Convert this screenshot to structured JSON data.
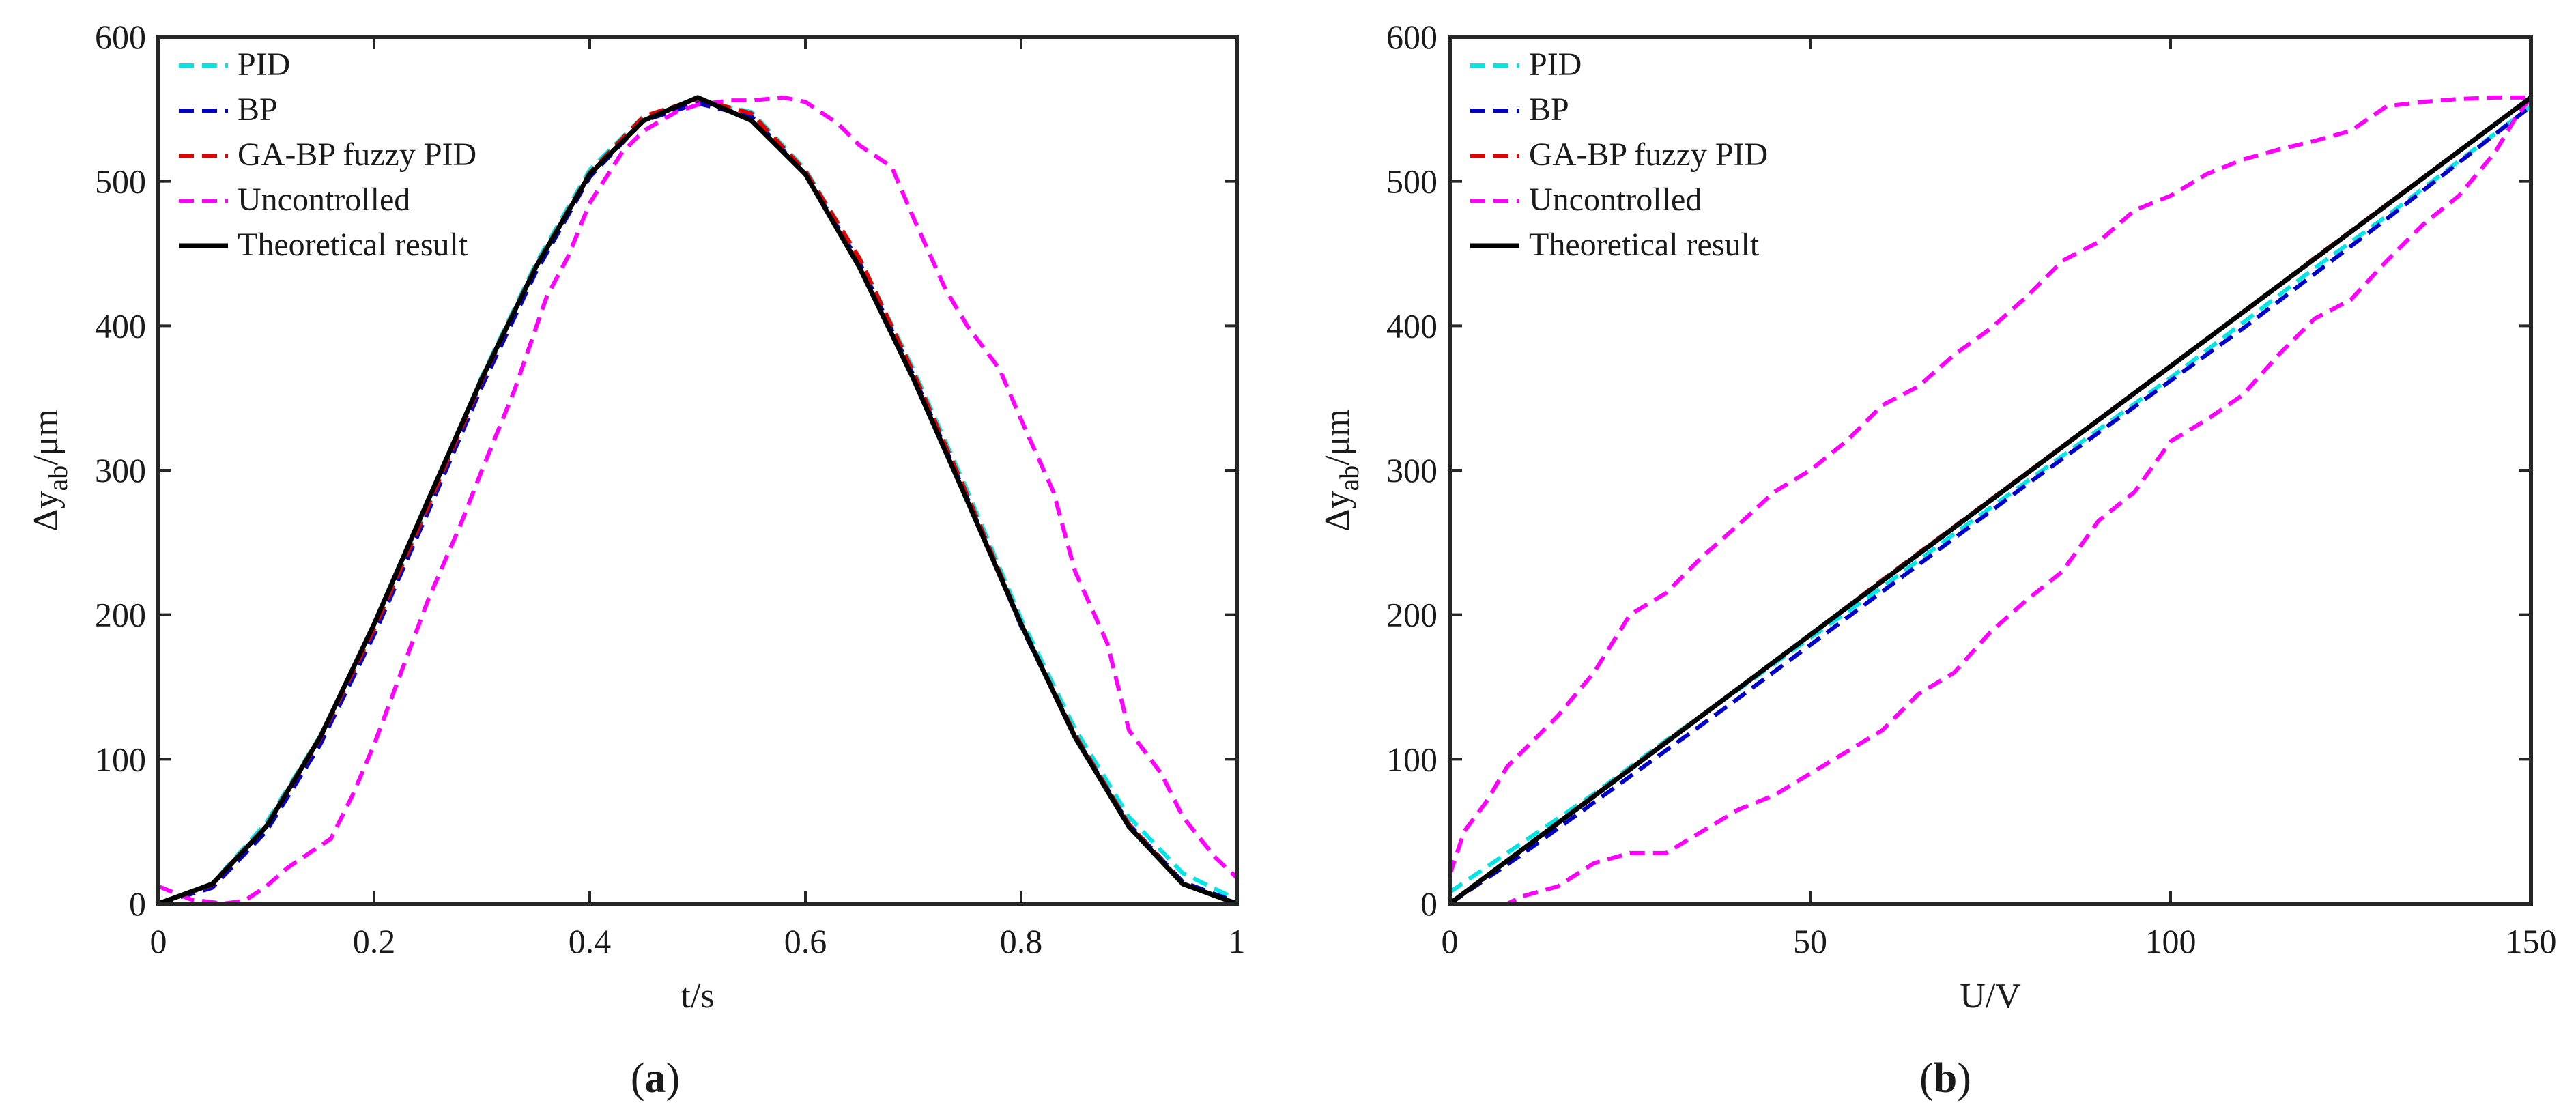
{
  "figure_caption": {
    "panels": [
      "a",
      "b"
    ]
  },
  "colors": {
    "PID": "#00e5e5",
    "BP": "#0000cc",
    "GA": "#e60000",
    "Uncontrolled": "#ff00ff",
    "Theoretical": "#000000"
  },
  "chart_data": [
    {
      "id": "a",
      "type": "line",
      "caption_label": "a",
      "xlabel": "t/s",
      "ylabel_main": "Δy",
      "ylabel_sub": "ab",
      "ylabel_unit": "/μm",
      "xlim": [
        0,
        1
      ],
      "ylim": [
        0,
        600
      ],
      "xticks": [
        0,
        0.2,
        0.4,
        0.6,
        0.8,
        1
      ],
      "xtick_labels": [
        "0",
        "0.2",
        "0.4",
        "0.6",
        "0.8",
        "1"
      ],
      "yticks": [
        0,
        100,
        200,
        300,
        400,
        500,
        600
      ],
      "ytick_labels": [
        "0",
        "100",
        "200",
        "300",
        "400",
        "500",
        "600"
      ],
      "legend_position": "top-left",
      "legend": [
        "PID",
        "BP",
        "GA-BP fuzzy PID",
        "Uncontrolled",
        "Theoretical result"
      ],
      "series": [
        {
          "name": "PID",
          "style": "dashed",
          "x": [
            0,
            0.05,
            0.1,
            0.15,
            0.2,
            0.25,
            0.3,
            0.35,
            0.4,
            0.45,
            0.5,
            0.55,
            0.6,
            0.65,
            0.7,
            0.75,
            0.8,
            0.85,
            0.9,
            0.95,
            1.0
          ],
          "y": [
            0,
            14,
            56,
            116,
            192,
            276,
            365,
            443,
            508,
            545,
            556,
            548,
            508,
            447,
            370,
            286,
            197,
            121,
            60,
            21,
            3
          ]
        },
        {
          "name": "BP",
          "style": "dashed",
          "x": [
            0,
            0.05,
            0.1,
            0.15,
            0.2,
            0.25,
            0.3,
            0.35,
            0.4,
            0.45,
            0.5,
            0.55,
            0.6,
            0.65,
            0.7,
            0.75,
            0.8,
            0.85,
            0.9,
            0.95,
            1.0
          ],
          "y": [
            0,
            11,
            50,
            110,
            186,
            271,
            358,
            437,
            503,
            542,
            554,
            545,
            505,
            444,
            366,
            281,
            192,
            116,
            55,
            15,
            1
          ]
        },
        {
          "name": "GA-BP fuzzy PID",
          "style": "dashed",
          "x": [
            0,
            0.05,
            0.1,
            0.15,
            0.2,
            0.25,
            0.3,
            0.35,
            0.4,
            0.45,
            0.5,
            0.55,
            0.6,
            0.65,
            0.7,
            0.75,
            0.8,
            0.85,
            0.9,
            0.95,
            1.0
          ],
          "y": [
            0,
            13,
            53,
            114,
            190,
            275,
            362,
            441,
            506,
            545,
            557,
            547,
            507,
            447,
            368,
            283,
            194,
            117,
            55,
            14,
            0
          ]
        },
        {
          "name": "Uncontrolled",
          "style": "dashed",
          "x": [
            0,
            0.03,
            0.06,
            0.08,
            0.1,
            0.12,
            0.14,
            0.16,
            0.18,
            0.2,
            0.22,
            0.25,
            0.28,
            0.3,
            0.33,
            0.36,
            0.38,
            0.4,
            0.43,
            0.45,
            0.48,
            0.5,
            0.53,
            0.55,
            0.58,
            0.6,
            0.63,
            0.65,
            0.68,
            0.7,
            0.73,
            0.75,
            0.78,
            0.8,
            0.83,
            0.85,
            0.88,
            0.9,
            0.93,
            0.95,
            0.98,
            1.0
          ],
          "y": [
            12,
            3,
            0,
            2,
            12,
            25,
            35,
            45,
            75,
            110,
            150,
            210,
            262,
            300,
            355,
            420,
            448,
            485,
            520,
            535,
            548,
            553,
            556,
            556,
            558,
            555,
            540,
            525,
            510,
            475,
            425,
            400,
            370,
            335,
            285,
            230,
            180,
            120,
            90,
            60,
            32,
            18
          ]
        },
        {
          "name": "Theoretical result",
          "style": "solid",
          "x": [
            0,
            0.05,
            0.1,
            0.15,
            0.2,
            0.25,
            0.3,
            0.35,
            0.4,
            0.45,
            0.5,
            0.55,
            0.6,
            0.65,
            0.7,
            0.75,
            0.8,
            0.85,
            0.9,
            0.95,
            1.0
          ],
          "y": [
            0,
            13.6,
            53.3,
            115.2,
            193.4,
            279.0,
            363.5,
            440.6,
            504.9,
            542.1,
            558.0,
            542.1,
            504.9,
            440.6,
            363.5,
            279.0,
            193.4,
            115.2,
            53.3,
            13.6,
            0
          ]
        }
      ]
    },
    {
      "id": "b",
      "type": "line",
      "caption_label": "b",
      "xlabel": "U/V",
      "ylabel_main": "Δy",
      "ylabel_sub": "ab",
      "ylabel_unit": "/μm",
      "xlim": [
        0,
        150
      ],
      "ylim": [
        0,
        600
      ],
      "xticks": [
        0,
        50,
        100,
        150
      ],
      "xtick_labels": [
        "0",
        "50",
        "100",
        "150"
      ],
      "yticks": [
        0,
        100,
        200,
        300,
        400,
        500,
        600
      ],
      "ytick_labels": [
        "0",
        "100",
        "200",
        "300",
        "400",
        "500",
        "600"
      ],
      "legend_position": "top-left",
      "legend": [
        "PID",
        "BP",
        "GA-BP fuzzy PID",
        "Uncontrolled",
        "Theoretical result"
      ],
      "series": [
        {
          "name": "PID",
          "style": "dashed",
          "x": [
            0,
            10,
            20,
            30,
            40,
            50,
            60,
            70,
            80,
            90,
            100,
            110,
            120,
            130,
            140,
            150
          ],
          "y": [
            8,
            42,
            76,
            113,
            148,
            184,
            219,
            256,
            292,
            328,
            364,
            402,
            440,
            476,
            514,
            552
          ]
        },
        {
          "name": "BP",
          "style": "dashed",
          "x": [
            0,
            10,
            20,
            30,
            40,
            50,
            60,
            70,
            80,
            90,
            100,
            110,
            120,
            130,
            140,
            150
          ],
          "y": [
            0,
            34,
            70,
            106,
            142,
            179,
            216,
            253,
            290,
            326,
            362,
            398,
            436,
            474,
            513,
            552
          ]
        },
        {
          "name": "GA-BP fuzzy PID",
          "style": "dashed",
          "x": [
            0,
            10,
            20,
            30,
            40,
            50,
            60,
            70,
            80,
            90,
            100,
            110,
            120,
            130,
            140,
            150
          ],
          "y": [
            0,
            37,
            74,
            112,
            149,
            186,
            224,
            261,
            298,
            335,
            372,
            409,
            447,
            484,
            521,
            558
          ]
        },
        {
          "name": "Uncontrolled",
          "style": "dashed",
          "x": [
            0,
            2,
            5,
            8,
            10,
            15,
            20,
            25,
            30,
            35,
            40,
            45,
            50,
            55,
            60,
            65,
            70,
            75,
            80,
            85,
            90,
            95,
            100,
            105,
            110,
            115,
            120,
            125,
            130,
            135,
            140,
            145,
            150,
            148,
            145,
            140,
            135,
            130,
            125,
            120,
            115,
            110,
            105,
            100,
            95,
            90,
            85,
            80,
            75,
            70,
            65,
            60,
            55,
            50,
            45,
            40,
            35,
            30,
            25,
            20,
            15,
            10,
            8,
            5,
            2,
            0
          ],
          "y": [
            20,
            50,
            70,
            95,
            105,
            130,
            160,
            200,
            215,
            240,
            262,
            285,
            300,
            320,
            345,
            358,
            380,
            398,
            420,
            445,
            458,
            480,
            490,
            505,
            515,
            522,
            528,
            535,
            552,
            555,
            557,
            558,
            558,
            545,
            520,
            490,
            470,
            445,
            418,
            405,
            380,
            352,
            335,
            320,
            285,
            265,
            230,
            210,
            188,
            160,
            145,
            120,
            105,
            90,
            75,
            65,
            50,
            35,
            35,
            28,
            12,
            5,
            0,
            0,
            0,
            0
          ]
        },
        {
          "name": "Theoretical result",
          "style": "solid",
          "x": [
            0,
            150
          ],
          "y": [
            0,
            558
          ]
        }
      ]
    }
  ]
}
